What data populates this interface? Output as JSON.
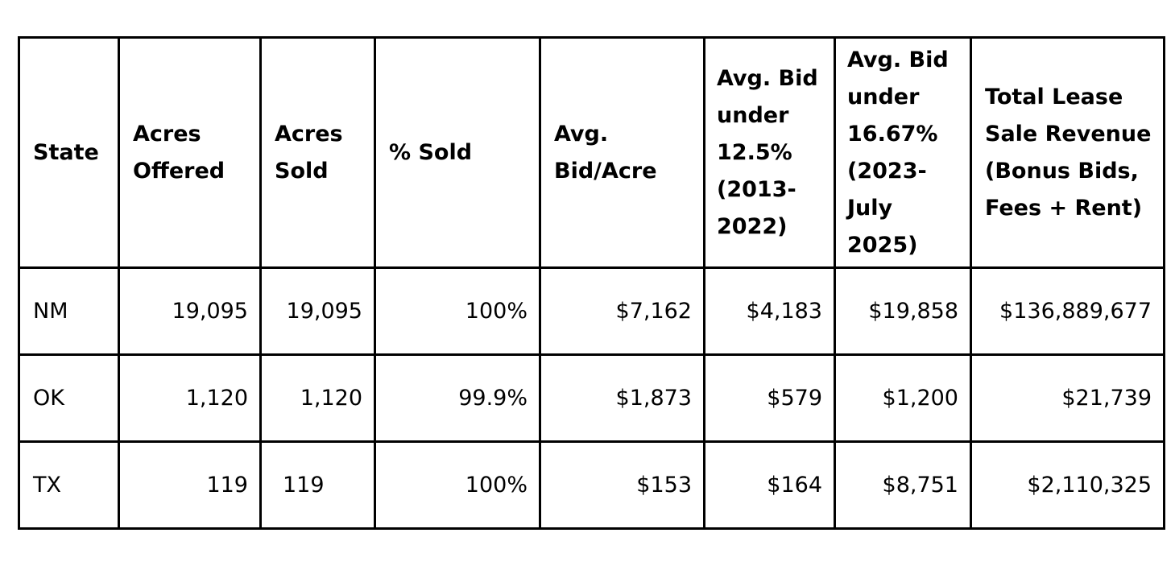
{
  "table": {
    "headers": [
      "State",
      "Acres Offered",
      "Acres Sold",
      "% Sold",
      "Avg. Bid/Acre",
      "Avg. Bid under 12.5% (2013-2022)",
      "Avg. Bid under 16.67% (2023-July 2025)",
      "Total Lease Sale Revenue (Bonus Bids, Fees + Rent)"
    ],
    "rows": [
      [
        "NM",
        "19,095",
        "19,095",
        "100%",
        "$7,162",
        "$4,183",
        "$19,858",
        "$136,889,677"
      ],
      [
        "OK",
        "1,120",
        "1,120",
        "99.9%",
        "$1,873",
        "$579",
        "$1,200",
        "$21,739"
      ],
      [
        "TX",
        "119",
        "119",
        "100%",
        "$153",
        "$164",
        "$8,751",
        "$2,110,325"
      ]
    ]
  }
}
